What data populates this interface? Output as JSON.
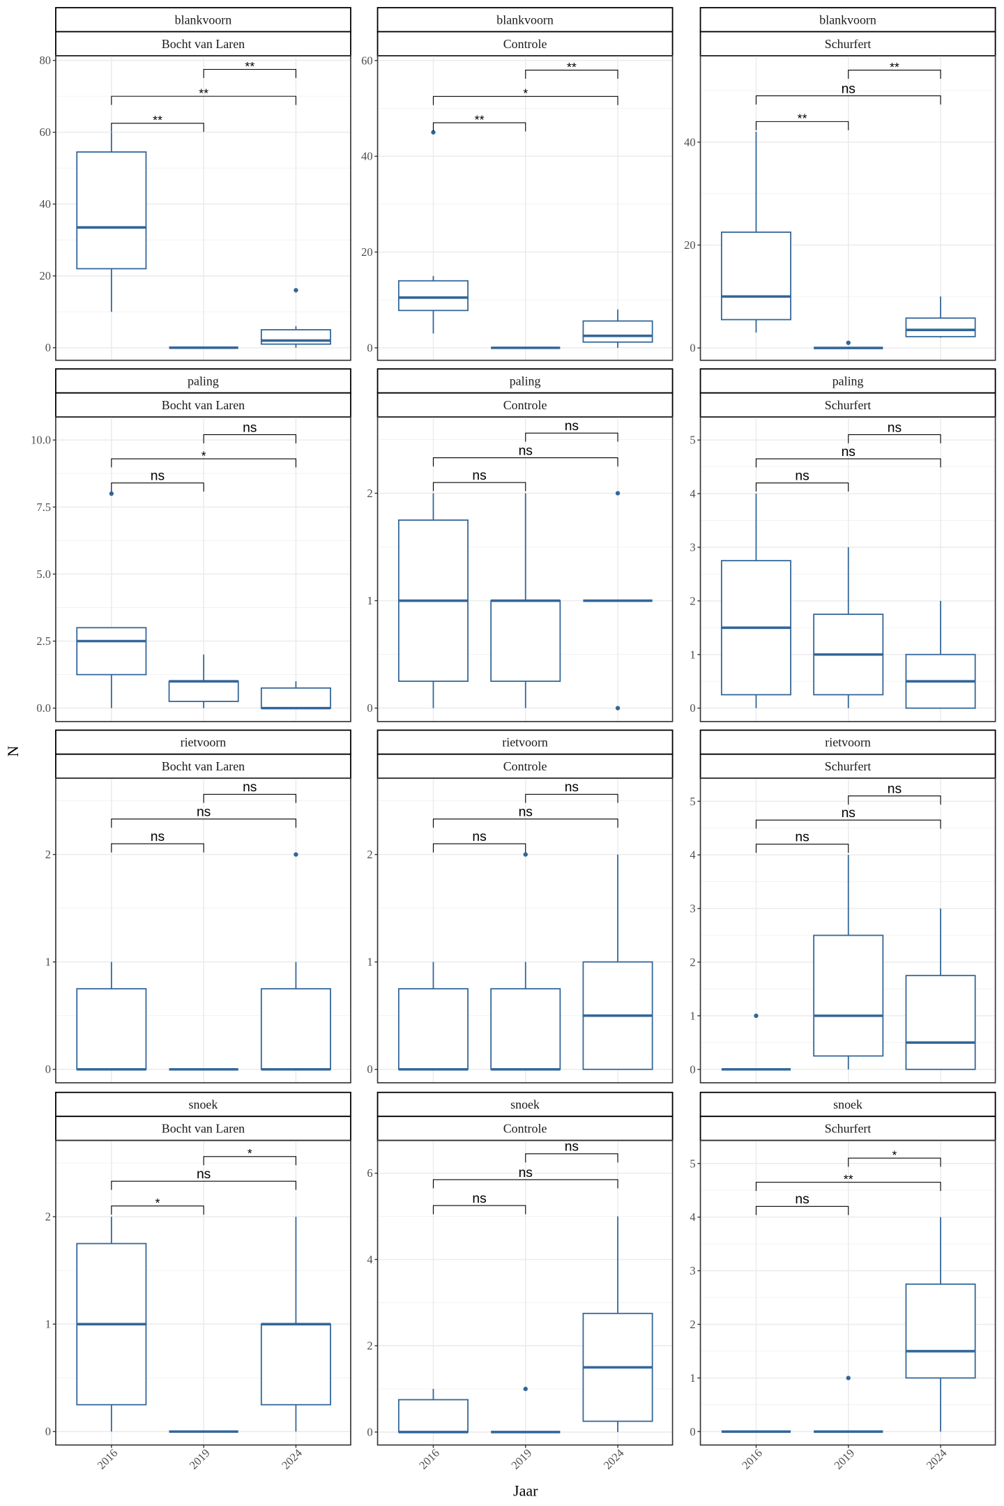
{
  "chart_data": {
    "type": "boxplot",
    "facet_rows": [
      "blankvoorn",
      "paling",
      "rietvoorn",
      "snoek"
    ],
    "facet_cols": [
      "Bocht van Laren",
      "Controle",
      "Schurfert"
    ],
    "xlabel": "Jaar",
    "ylabel": "N",
    "categories": [
      "2016",
      "2019",
      "2024"
    ],
    "grid": true,
    "box_color": "#336699",
    "panels": [
      {
        "row": "blankvoorn",
        "col": "Bocht van Laren",
        "ylim": [
          -3.5,
          81.3
        ],
        "yticks": [
          0,
          20,
          40,
          60,
          80
        ],
        "ytick_labels": [
          "0",
          "20",
          "40",
          "60",
          "80"
        ],
        "boxes": [
          {
            "lower": 10,
            "q1": 22,
            "median": 33.5,
            "q3": 54.5,
            "upper": 60,
            "outliers": []
          },
          {
            "lower": 0,
            "q1": 0,
            "median": 0,
            "q3": 0,
            "upper": 0,
            "outliers": []
          },
          {
            "lower": 0,
            "q1": 1,
            "median": 2,
            "q3": 5,
            "upper": 6,
            "outliers": [
              16
            ]
          }
        ],
        "comparisons": [
          {
            "groups": [
              "2016",
              "2019"
            ],
            "y": 62.5,
            "label": "**"
          },
          {
            "groups": [
              "2016",
              "2024"
            ],
            "y": 70,
            "label": "**"
          },
          {
            "groups": [
              "2019",
              "2024"
            ],
            "y": 77.5,
            "label": "**"
          }
        ]
      },
      {
        "row": "blankvoorn",
        "col": "Controle",
        "ylim": [
          -2.6,
          61
        ],
        "yticks": [
          0,
          20,
          40,
          60
        ],
        "ytick_labels": [
          "0",
          "20",
          "40",
          "60"
        ],
        "boxes": [
          {
            "lower": 3,
            "q1": 7.8,
            "median": 10.5,
            "q3": 14,
            "upper": 15,
            "outliers": [
              45
            ]
          },
          {
            "lower": 0,
            "q1": 0,
            "median": 0,
            "q3": 0,
            "upper": 0,
            "outliers": []
          },
          {
            "lower": 0,
            "q1": 1.2,
            "median": 2.5,
            "q3": 5.6,
            "upper": 8,
            "outliers": []
          }
        ],
        "comparisons": [
          {
            "groups": [
              "2016",
              "2019"
            ],
            "y": 47,
            "label": "**"
          },
          {
            "groups": [
              "2016",
              "2024"
            ],
            "y": 52.5,
            "label": "*"
          },
          {
            "groups": [
              "2019",
              "2024"
            ],
            "y": 58,
            "label": "**"
          }
        ]
      },
      {
        "row": "blankvoorn",
        "col": "Schurfert",
        "ylim": [
          -2.4,
          56.8
        ],
        "yticks": [
          0,
          20,
          40
        ],
        "ytick_labels": [
          "0",
          "20",
          "40"
        ],
        "boxes": [
          {
            "lower": 3,
            "q1": 5.5,
            "median": 10,
            "q3": 22.5,
            "upper": 42,
            "outliers": []
          },
          {
            "lower": 0,
            "q1": 0,
            "median": 0,
            "q3": 0,
            "upper": 0,
            "outliers": [
              1
            ]
          },
          {
            "lower": 2,
            "q1": 2.2,
            "median": 3.5,
            "q3": 5.8,
            "upper": 10,
            "outliers": []
          }
        ],
        "comparisons": [
          {
            "groups": [
              "2016",
              "2019"
            ],
            "y": 44,
            "label": "**"
          },
          {
            "groups": [
              "2016",
              "2024"
            ],
            "y": 49,
            "label": "ns"
          },
          {
            "groups": [
              "2019",
              "2024"
            ],
            "y": 54,
            "label": "**"
          }
        ]
      },
      {
        "row": "paling",
        "col": "Bocht van Laren",
        "ylim": [
          -0.5,
          10.86
        ],
        "yticks": [
          0,
          2.5,
          5,
          7.5,
          10
        ],
        "ytick_labels": [
          "0.0",
          "2.5",
          "5.0",
          "7.5",
          "10.0"
        ],
        "boxes": [
          {
            "lower": 0,
            "q1": 1.25,
            "median": 2.5,
            "q3": 3,
            "upper": 3,
            "outliers": [
              8
            ]
          },
          {
            "lower": 0,
            "q1": 0.25,
            "median": 1,
            "q3": 1,
            "upper": 2,
            "outliers": []
          },
          {
            "lower": 0,
            "q1": 0,
            "median": 0,
            "q3": 0.75,
            "upper": 1,
            "outliers": []
          }
        ],
        "comparisons": [
          {
            "groups": [
              "2016",
              "2019"
            ],
            "y": 8.4,
            "label": "ns"
          },
          {
            "groups": [
              "2016",
              "2024"
            ],
            "y": 9.3,
            "label": "*"
          },
          {
            "groups": [
              "2019",
              "2024"
            ],
            "y": 10.2,
            "label": "ns"
          }
        ]
      },
      {
        "row": "paling",
        "col": "Controle",
        "ylim": [
          -0.125,
          2.71
        ],
        "yticks": [
          0,
          1,
          2
        ],
        "ytick_labels": [
          "0",
          "1",
          "2"
        ],
        "boxes": [
          {
            "lower": 0,
            "q1": 0.25,
            "median": 1,
            "q3": 1.75,
            "upper": 2,
            "outliers": []
          },
          {
            "lower": 0,
            "q1": 0.25,
            "median": 1,
            "q3": 1,
            "upper": 2,
            "outliers": []
          },
          {
            "lower": 1,
            "q1": 1,
            "median": 1,
            "q3": 1,
            "upper": 1,
            "outliers": [
              0,
              2
            ]
          }
        ],
        "comparisons": [
          {
            "groups": [
              "2016",
              "2019"
            ],
            "y": 2.1,
            "label": "ns"
          },
          {
            "groups": [
              "2016",
              "2024"
            ],
            "y": 2.33,
            "label": "ns"
          },
          {
            "groups": [
              "2019",
              "2024"
            ],
            "y": 2.56,
            "label": "ns"
          }
        ]
      },
      {
        "row": "paling",
        "col": "Schurfert",
        "ylim": [
          -0.25,
          5.43
        ],
        "yticks": [
          0,
          1,
          2,
          3,
          4,
          5
        ],
        "ytick_labels": [
          "0",
          "1",
          "2",
          "3",
          "4",
          "5"
        ],
        "boxes": [
          {
            "lower": 0,
            "q1": 0.25,
            "median": 1.5,
            "q3": 2.75,
            "upper": 4,
            "outliers": []
          },
          {
            "lower": 0,
            "q1": 0.25,
            "median": 1,
            "q3": 1.75,
            "upper": 3,
            "outliers": []
          },
          {
            "lower": 0,
            "q1": 0,
            "median": 0.5,
            "q3": 1,
            "upper": 2,
            "outliers": []
          }
        ],
        "comparisons": [
          {
            "groups": [
              "2016",
              "2019"
            ],
            "y": 4.2,
            "label": "ns"
          },
          {
            "groups": [
              "2016",
              "2024"
            ],
            "y": 4.65,
            "label": "ns"
          },
          {
            "groups": [
              "2019",
              "2024"
            ],
            "y": 5.1,
            "label": "ns"
          }
        ]
      },
      {
        "row": "rietvoorn",
        "col": "Bocht van Laren",
        "ylim": [
          -0.125,
          2.71
        ],
        "yticks": [
          0,
          1,
          2
        ],
        "ytick_labels": [
          "0",
          "1",
          "2"
        ],
        "boxes": [
          {
            "lower": 0,
            "q1": 0,
            "median": 0,
            "q3": 0.75,
            "upper": 1,
            "outliers": []
          },
          {
            "lower": 0,
            "q1": 0,
            "median": 0,
            "q3": 0,
            "upper": 0,
            "outliers": []
          },
          {
            "lower": 0,
            "q1": 0,
            "median": 0,
            "q3": 0.75,
            "upper": 1,
            "outliers": [
              2
            ]
          }
        ],
        "comparisons": [
          {
            "groups": [
              "2016",
              "2019"
            ],
            "y": 2.1,
            "label": "ns"
          },
          {
            "groups": [
              "2016",
              "2024"
            ],
            "y": 2.33,
            "label": "ns"
          },
          {
            "groups": [
              "2019",
              "2024"
            ],
            "y": 2.56,
            "label": "ns"
          }
        ]
      },
      {
        "row": "rietvoorn",
        "col": "Controle",
        "ylim": [
          -0.125,
          2.71
        ],
        "yticks": [
          0,
          1,
          2
        ],
        "ytick_labels": [
          "0",
          "1",
          "2"
        ],
        "boxes": [
          {
            "lower": 0,
            "q1": 0,
            "median": 0,
            "q3": 0.75,
            "upper": 1,
            "outliers": []
          },
          {
            "lower": 0,
            "q1": 0,
            "median": 0,
            "q3": 0.75,
            "upper": 1,
            "outliers": [
              2
            ]
          },
          {
            "lower": 0,
            "q1": 0,
            "median": 0.5,
            "q3": 1,
            "upper": 2,
            "outliers": []
          }
        ],
        "comparisons": [
          {
            "groups": [
              "2016",
              "2019"
            ],
            "y": 2.1,
            "label": "ns"
          },
          {
            "groups": [
              "2016",
              "2024"
            ],
            "y": 2.33,
            "label": "ns"
          },
          {
            "groups": [
              "2019",
              "2024"
            ],
            "y": 2.56,
            "label": "ns"
          }
        ]
      },
      {
        "row": "rietvoorn",
        "col": "Schurfert",
        "ylim": [
          -0.25,
          5.43
        ],
        "yticks": [
          0,
          1,
          2,
          3,
          4,
          5
        ],
        "ytick_labels": [
          "0",
          "1",
          "2",
          "3",
          "4",
          "5"
        ],
        "boxes": [
          {
            "lower": 0,
            "q1": 0,
            "median": 0,
            "q3": 0,
            "upper": 0,
            "outliers": [
              1
            ]
          },
          {
            "lower": 0,
            "q1": 0.25,
            "median": 1,
            "q3": 2.5,
            "upper": 4,
            "outliers": []
          },
          {
            "lower": 0,
            "q1": 0,
            "median": 0.5,
            "q3": 1.75,
            "upper": 3,
            "outliers": []
          }
        ],
        "comparisons": [
          {
            "groups": [
              "2016",
              "2019"
            ],
            "y": 4.2,
            "label": "ns"
          },
          {
            "groups": [
              "2016",
              "2024"
            ],
            "y": 4.65,
            "label": "ns"
          },
          {
            "groups": [
              "2019",
              "2024"
            ],
            "y": 5.1,
            "label": "ns"
          }
        ]
      },
      {
        "row": "snoek",
        "col": "Bocht van Laren",
        "ylim": [
          -0.125,
          2.71
        ],
        "yticks": [
          0,
          1,
          2
        ],
        "ytick_labels": [
          "0",
          "1",
          "2"
        ],
        "boxes": [
          {
            "lower": 0,
            "q1": 0.25,
            "median": 1,
            "q3": 1.75,
            "upper": 2,
            "outliers": []
          },
          {
            "lower": 0,
            "q1": 0,
            "median": 0,
            "q3": 0,
            "upper": 0,
            "outliers": []
          },
          {
            "lower": 0,
            "q1": 0.25,
            "median": 1,
            "q3": 1,
            "upper": 2,
            "outliers": []
          }
        ],
        "comparisons": [
          {
            "groups": [
              "2016",
              "2019"
            ],
            "y": 2.1,
            "label": "*"
          },
          {
            "groups": [
              "2016",
              "2024"
            ],
            "y": 2.33,
            "label": "ns"
          },
          {
            "groups": [
              "2019",
              "2024"
            ],
            "y": 2.56,
            "label": "*"
          }
        ]
      },
      {
        "row": "snoek",
        "col": "Controle",
        "ylim": [
          -0.3,
          6.76
        ],
        "yticks": [
          0,
          2,
          4,
          6
        ],
        "ytick_labels": [
          "0",
          "2",
          "4",
          "6"
        ],
        "boxes": [
          {
            "lower": 0,
            "q1": 0,
            "median": 0,
            "q3": 0.75,
            "upper": 1,
            "outliers": []
          },
          {
            "lower": 0,
            "q1": 0,
            "median": 0,
            "q3": 0,
            "upper": 0,
            "outliers": [
              1
            ]
          },
          {
            "lower": 0,
            "q1": 0.25,
            "median": 1.5,
            "q3": 2.75,
            "upper": 5,
            "outliers": []
          }
        ],
        "comparisons": [
          {
            "groups": [
              "2016",
              "2019"
            ],
            "y": 5.25,
            "label": "ns"
          },
          {
            "groups": [
              "2016",
              "2024"
            ],
            "y": 5.85,
            "label": "ns"
          },
          {
            "groups": [
              "2019",
              "2024"
            ],
            "y": 6.45,
            "label": "ns"
          }
        ]
      },
      {
        "row": "snoek",
        "col": "Schurfert",
        "ylim": [
          -0.25,
          5.43
        ],
        "yticks": [
          0,
          1,
          2,
          3,
          4,
          5
        ],
        "ytick_labels": [
          "0",
          "1",
          "2",
          "3",
          "4",
          "5"
        ],
        "boxes": [
          {
            "lower": 0,
            "q1": 0,
            "median": 0,
            "q3": 0,
            "upper": 0,
            "outliers": []
          },
          {
            "lower": 0,
            "q1": 0,
            "median": 0,
            "q3": 0,
            "upper": 0,
            "outliers": [
              1
            ]
          },
          {
            "lower": 0,
            "q1": 1,
            "median": 1.5,
            "q3": 2.75,
            "upper": 4,
            "outliers": []
          }
        ],
        "comparisons": [
          {
            "groups": [
              "2016",
              "2019"
            ],
            "y": 4.2,
            "label": "ns"
          },
          {
            "groups": [
              "2016",
              "2024"
            ],
            "y": 4.65,
            "label": "**"
          },
          {
            "groups": [
              "2019",
              "2024"
            ],
            "y": 5.1,
            "label": "*"
          }
        ]
      }
    ]
  }
}
